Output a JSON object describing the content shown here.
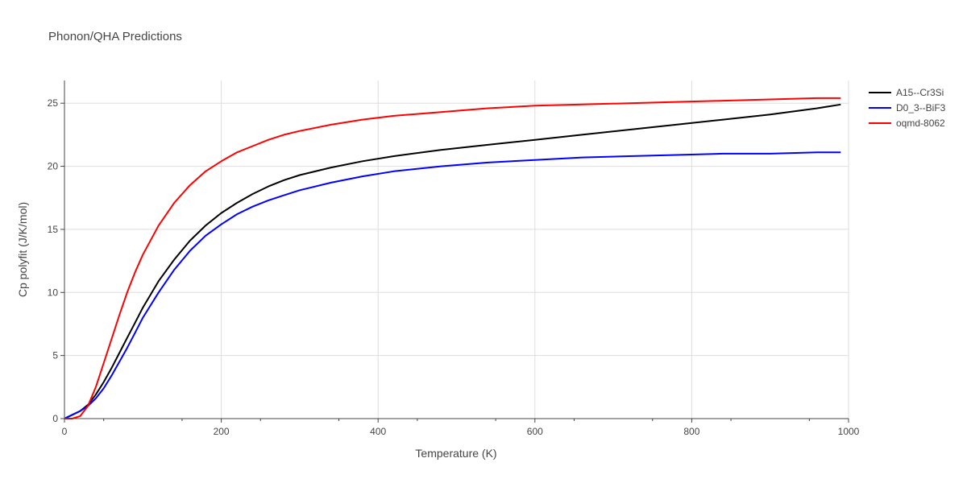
{
  "chart_data": {
    "type": "line",
    "title": "Phonon/QHA Predictions",
    "xlabel": "Temperature (K)",
    "ylabel": "Cp polyfit (J/K/mol)",
    "xlim": [
      0,
      1000
    ],
    "ylim": [
      0,
      26.8
    ],
    "xticks": [
      0,
      200,
      400,
      600,
      800,
      1000
    ],
    "yticks": [
      0,
      5,
      10,
      15,
      20,
      25
    ],
    "grid": true,
    "legend_position": "top-right",
    "series": [
      {
        "name": "A15--Cr3Si",
        "color": "#000000",
        "x": [
          0,
          10,
          20,
          30,
          40,
          50,
          60,
          70,
          80,
          90,
          100,
          120,
          140,
          160,
          180,
          200,
          220,
          240,
          260,
          280,
          300,
          340,
          380,
          420,
          480,
          540,
          600,
          660,
          720,
          780,
          840,
          900,
          960,
          990
        ],
        "y": [
          0,
          0.3,
          0.6,
          1.1,
          1.9,
          2.9,
          4.0,
          5.2,
          6.4,
          7.6,
          8.8,
          10.9,
          12.6,
          14.1,
          15.3,
          16.3,
          17.1,
          17.8,
          18.4,
          18.9,
          19.3,
          19.9,
          20.4,
          20.8,
          21.3,
          21.7,
          22.1,
          22.5,
          22.9,
          23.3,
          23.7,
          24.1,
          24.6,
          24.9
        ]
      },
      {
        "name": "D0_3--BiF3",
        "color": "#0000ff",
        "x": [
          0,
          10,
          20,
          30,
          40,
          50,
          60,
          70,
          80,
          90,
          100,
          120,
          140,
          160,
          180,
          200,
          220,
          240,
          260,
          280,
          300,
          340,
          380,
          420,
          480,
          540,
          600,
          660,
          720,
          780,
          840,
          900,
          960,
          990
        ],
        "y": [
          0,
          0.3,
          0.6,
          1.0,
          1.6,
          2.4,
          3.4,
          4.5,
          5.6,
          6.8,
          8.0,
          10.0,
          11.8,
          13.3,
          14.5,
          15.4,
          16.2,
          16.8,
          17.3,
          17.7,
          18.1,
          18.7,
          19.2,
          19.6,
          20.0,
          20.3,
          20.5,
          20.7,
          20.8,
          20.9,
          21.0,
          21.0,
          21.1,
          21.1
        ]
      },
      {
        "name": "oqmd-8062",
        "color": "#ff0000",
        "x": [
          0,
          10,
          20,
          30,
          40,
          50,
          60,
          70,
          80,
          90,
          100,
          120,
          140,
          160,
          180,
          200,
          220,
          240,
          260,
          280,
          300,
          340,
          380,
          420,
          480,
          540,
          600,
          660,
          720,
          780,
          840,
          900,
          960,
          990
        ],
        "y": [
          0,
          0.0,
          0.2,
          1.0,
          2.5,
          4.4,
          6.3,
          8.2,
          10.0,
          11.6,
          13.0,
          15.3,
          17.1,
          18.5,
          19.6,
          20.4,
          21.1,
          21.6,
          22.1,
          22.5,
          22.8,
          23.3,
          23.7,
          24.0,
          24.3,
          24.6,
          24.8,
          24.9,
          25.0,
          25.1,
          25.2,
          25.3,
          25.4,
          25.4
        ]
      }
    ]
  }
}
